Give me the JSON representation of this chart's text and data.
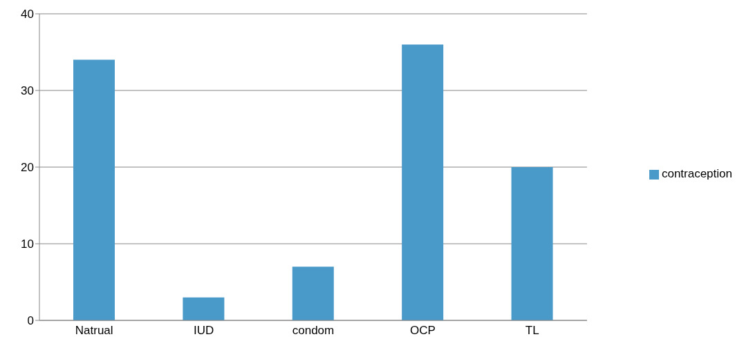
{
  "chart_data": {
    "type": "bar",
    "categories": [
      "Natrual",
      "IUD",
      "condom",
      "OCP",
      "TL"
    ],
    "series": [
      {
        "name": "contraception",
        "color": "#4a9ac9",
        "values": [
          34,
          3,
          7,
          36,
          20
        ]
      }
    ],
    "ylim": [
      0,
      40
    ],
    "yticks": [
      0,
      10,
      20,
      30,
      40
    ],
    "grid": "y",
    "legend": "right"
  }
}
